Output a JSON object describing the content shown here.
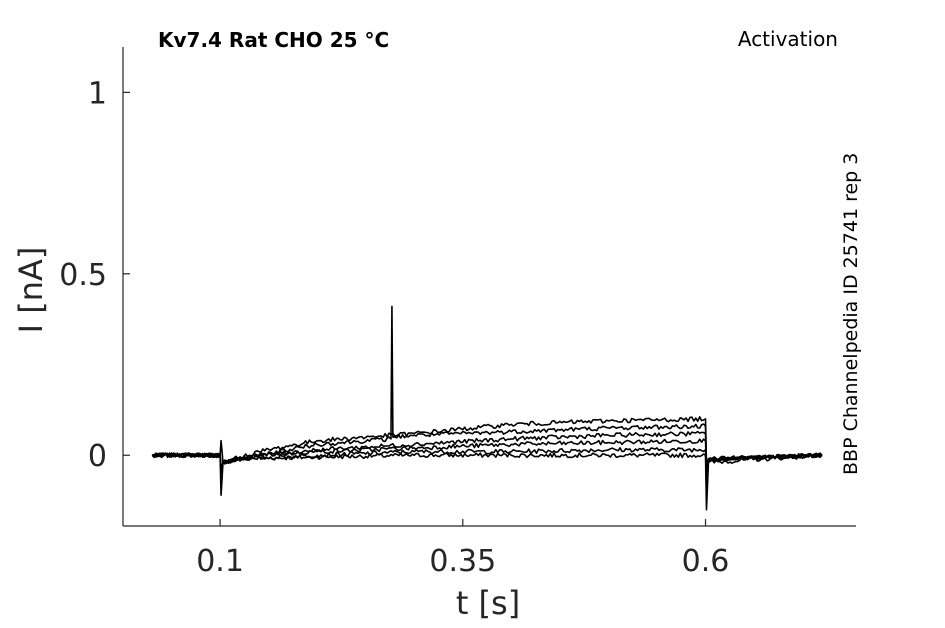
{
  "chart_data": {
    "type": "line",
    "title": "Kv7.4  Rat  CHO  25 °C",
    "protocol_label": "Activation",
    "side_label": "BBP Channelpedia ID 25741 rep 3",
    "xlabel": "t [s]",
    "ylabel": "I [nA]",
    "xlim": [
      0.0,
      0.755
    ],
    "ylim": [
      -0.195,
      1.125
    ],
    "x_ticks": [
      0.1,
      0.35,
      0.6
    ],
    "x_tick_labels": [
      "0.1",
      "0.35",
      "0.6"
    ],
    "y_ticks": [
      0,
      0.5,
      1
    ],
    "y_tick_labels": [
      "0",
      "0.5",
      "1"
    ],
    "grid": false,
    "legend": "none",
    "color": "#000000",
    "series": [
      {
        "x": [
          0.03,
          0.1,
          0.101,
          0.103,
          0.12,
          0.2,
          0.3,
          0.4,
          0.5,
          0.6,
          0.601,
          0.603,
          0.72
        ],
        "y": [
          0.0,
          0.0,
          -0.11,
          -0.02,
          -0.01,
          -0.005,
          0.0,
          0.0,
          0.0,
          0.0,
          -0.15,
          -0.02,
          0.0
        ]
      },
      {
        "x": [
          0.03,
          0.1,
          0.101,
          0.103,
          0.12,
          0.2,
          0.3,
          0.4,
          0.5,
          0.6,
          0.601,
          0.603,
          0.72
        ],
        "y": [
          0.0,
          0.0,
          0.04,
          -0.02,
          -0.01,
          0.0,
          0.01,
          0.01,
          0.015,
          0.015,
          -0.1,
          -0.01,
          0.0
        ]
      },
      {
        "x": [
          0.03,
          0.1,
          0.101,
          0.103,
          0.14,
          0.2,
          0.3,
          0.4,
          0.5,
          0.6,
          0.601,
          0.603,
          0.72
        ],
        "y": [
          0.0,
          0.0,
          -0.05,
          -0.02,
          0.0,
          0.01,
          0.02,
          0.03,
          0.035,
          0.04,
          -0.05,
          -0.01,
          0.0
        ]
      },
      {
        "x": [
          0.03,
          0.1,
          0.101,
          0.103,
          0.14,
          0.2,
          0.3,
          0.4,
          0.5,
          0.6,
          0.601,
          0.603,
          0.72
        ],
        "y": [
          0.0,
          0.0,
          -0.04,
          -0.02,
          0.0,
          0.015,
          0.03,
          0.045,
          0.055,
          0.06,
          -0.04,
          -0.01,
          0.0
        ]
      },
      {
        "x": [
          0.03,
          0.1,
          0.101,
          0.103,
          0.14,
          0.2,
          0.3,
          0.4,
          0.5,
          0.6,
          0.601,
          0.603,
          0.72
        ],
        "y": [
          0.0,
          0.0,
          -0.04,
          -0.02,
          0.01,
          0.04,
          0.06,
          0.085,
          0.095,
          0.1,
          -0.03,
          -0.01,
          0.0
        ]
      },
      {
        "x": [
          0.03,
          0.1,
          0.101,
          0.103,
          0.14,
          0.2,
          0.276,
          0.277,
          0.278,
          0.3,
          0.4,
          0.5,
          0.6,
          0.601,
          0.603,
          0.72
        ],
        "y": [
          0.0,
          0.0,
          -0.04,
          -0.02,
          0.0,
          0.03,
          0.045,
          0.41,
          0.05,
          0.055,
          0.065,
          0.075,
          0.08,
          -0.03,
          -0.01,
          0.0
        ]
      }
    ]
  }
}
